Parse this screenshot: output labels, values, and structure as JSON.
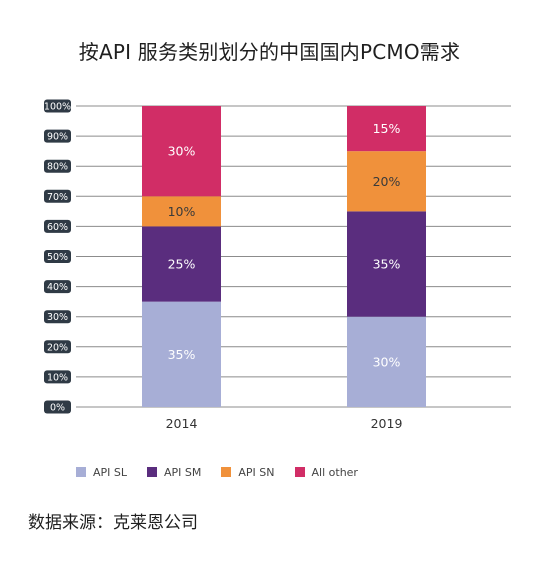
{
  "chart_data": {
    "type": "bar",
    "stacked": true,
    "title": "按API 服务类别划分的中国国内PCMO需求",
    "categories": [
      "2014",
      "2019"
    ],
    "ylim": [
      0,
      100
    ],
    "y_ticks": [
      "0%",
      "10%",
      "20%",
      "30%",
      "40%",
      "50%",
      "60%",
      "70%",
      "80%",
      "90%",
      "100%"
    ],
    "grid": true,
    "legend_position": "bottom-left",
    "series": [
      {
        "name": "API SL",
        "values": [
          35,
          30
        ],
        "labels": [
          "35%",
          "30%"
        ],
        "color": "#a7aed6"
      },
      {
        "name": "API SM",
        "values": [
          25,
          35
        ],
        "labels": [
          "25%",
          "35%"
        ],
        "color": "#5a2d7e"
      },
      {
        "name": "API SN",
        "values": [
          10,
          20
        ],
        "labels": [
          "10%",
          "20%"
        ],
        "color": "#f0913b"
      },
      {
        "name": "All other",
        "values": [
          30,
          15
        ],
        "labels": [
          "30%",
          "15%"
        ],
        "color": "#d12d66"
      }
    ]
  },
  "source": "数据来源：克莱恩公司",
  "colors": {
    "axis_tick_bg": "#2f3a45",
    "axis_tick_text": "#ffffff",
    "grid": "#8c8c8c",
    "bar_label_light": "#ffffff"
  }
}
